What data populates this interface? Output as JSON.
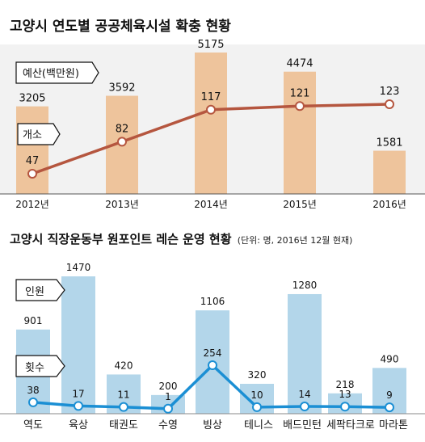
{
  "chart_data": [
    {
      "type": "bar",
      "title": "고양시 연도별 공공체육시설 확충 현황",
      "categories": [
        "2012년",
        "2013년",
        "2014년",
        "2015년",
        "2016년"
      ],
      "series": [
        {
          "name": "예산(백만원)",
          "type": "bar",
          "values": [
            3205,
            3592,
            5175,
            4474,
            1581
          ]
        },
        {
          "name": "개소",
          "type": "line",
          "values": [
            47,
            82,
            117,
            121,
            123
          ]
        }
      ],
      "colors": {
        "bar": "#eec49c",
        "line": "#b5563f",
        "band": "#f2f2f2"
      }
    },
    {
      "type": "bar",
      "title": "고양시 직장운동부 원포인트 레슨 운영 현황",
      "subtitle": "(단위: 명, 2016년 12월 현재)",
      "categories": [
        "역도",
        "육상",
        "태권도",
        "수영",
        "빙상",
        "테니스",
        "배드민턴",
        "세팍타크로",
        "마라톤"
      ],
      "series": [
        {
          "name": "인원",
          "type": "bar",
          "values": [
            901,
            1470,
            420,
            200,
            1106,
            320,
            1280,
            218,
            490
          ]
        },
        {
          "name": "횟수",
          "type": "line",
          "values": [
            38,
            17,
            11,
            1,
            254,
            10,
            14,
            13,
            9
          ]
        }
      ],
      "colors": {
        "bar": "#b3d6ea",
        "line": "#1b8fd4"
      }
    }
  ]
}
